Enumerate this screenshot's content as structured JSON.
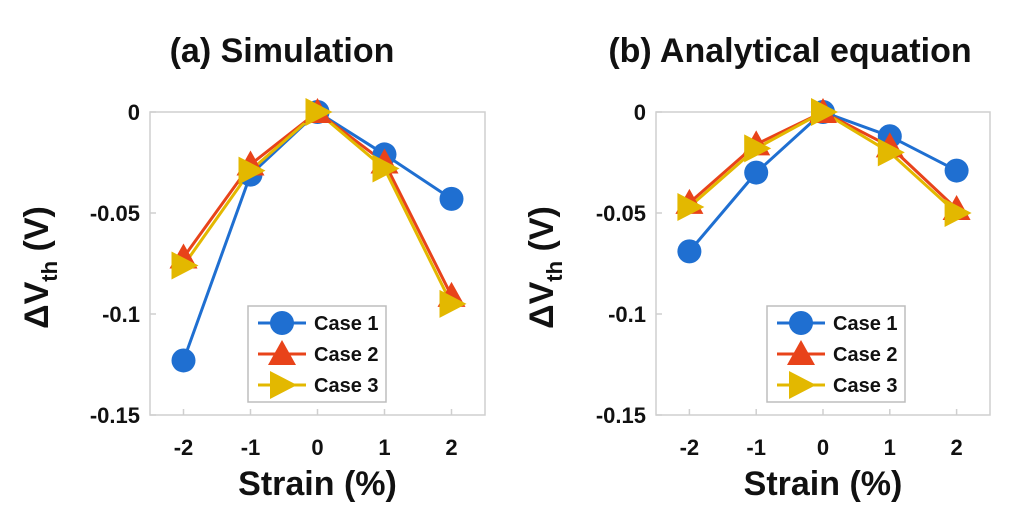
{
  "chart_data": [
    {
      "type": "line",
      "title": "(a) Simulation",
      "xlabel": "Strain (%)",
      "ylabel": "ΔV",
      "ylabel_sub": "th",
      "ylabel_unit": " (V)",
      "x": [
        -2,
        -1,
        0,
        1,
        2
      ],
      "xlim": [
        -2.5,
        2.5
      ],
      "ylim": [
        -0.15,
        0.0
      ],
      "xticks": [
        "-2",
        "-1",
        "0",
        "1",
        "2"
      ],
      "yticks": [
        "0",
        "-0.05",
        "-0.1",
        "-0.15"
      ],
      "grid": false,
      "legend_position": "bottom-right",
      "series": [
        {
          "name": "Case 1",
          "marker": "circle",
          "color": "#1f6fd1",
          "values": [
            -0.123,
            -0.031,
            0.0,
            -0.021,
            -0.043
          ]
        },
        {
          "name": "Case 2",
          "marker": "triangle-up",
          "color": "#e8431a",
          "values": [
            -0.072,
            -0.026,
            0.0,
            -0.025,
            -0.091
          ]
        },
        {
          "name": "Case 3",
          "marker": "triangle-right",
          "color": "#e3b800",
          "values": [
            -0.076,
            -0.029,
            0.0,
            -0.028,
            -0.095
          ]
        }
      ]
    },
    {
      "type": "line",
      "title": "(b) Analytical equation",
      "xlabel": "Strain (%)",
      "ylabel": "ΔV",
      "ylabel_sub": "th",
      "ylabel_unit": " (V)",
      "x": [
        -2,
        -1,
        0,
        1,
        2
      ],
      "xlim": [
        -2.5,
        2.5
      ],
      "ylim": [
        -0.15,
        0.0
      ],
      "xticks": [
        "-2",
        "-1",
        "0",
        "1",
        "2"
      ],
      "yticks": [
        "0",
        "-0.05",
        "-0.1",
        "-0.15"
      ],
      "grid": false,
      "legend_position": "bottom-right",
      "series": [
        {
          "name": "Case 1",
          "marker": "circle",
          "color": "#1f6fd1",
          "values": [
            -0.069,
            -0.03,
            0.0,
            -0.012,
            -0.029
          ]
        },
        {
          "name": "Case 2",
          "marker": "triangle-up",
          "color": "#e8431a",
          "values": [
            -0.045,
            -0.016,
            0.0,
            -0.017,
            -0.048
          ]
        },
        {
          "name": "Case 3",
          "marker": "triangle-right",
          "color": "#e3b800",
          "values": [
            -0.047,
            -0.018,
            0.0,
            -0.02,
            -0.05
          ]
        }
      ]
    }
  ]
}
